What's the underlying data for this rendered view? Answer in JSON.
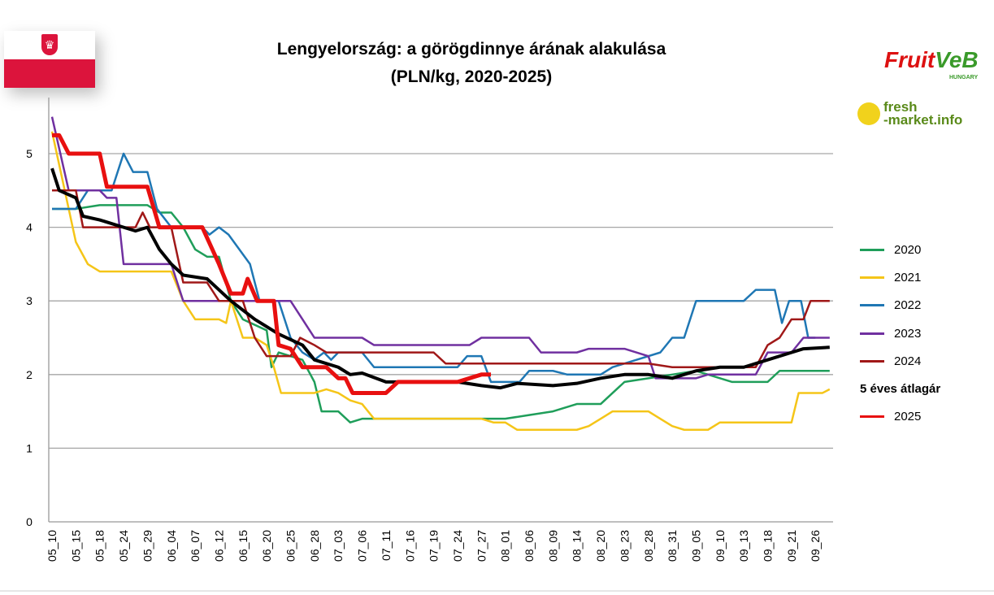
{
  "title_line1": "Lengyelország: a görögdinnye árának alakulása",
  "title_line2": "(PLN/kg, 2020-2025)",
  "logos": {
    "fruitveb": "FruitVeB",
    "fruitveb_sub": "HUNGARY",
    "freshmarket": "fresh-market.info"
  },
  "chart_data": {
    "type": "line",
    "title": "Lengyelország: a görögdinnye árának alakulása (PLN/kg, 2020-2025)",
    "xlabel": "",
    "ylabel": "",
    "ylim": [
      0,
      5.5
    ],
    "yticks": [
      0,
      1,
      2,
      3,
      4,
      5
    ],
    "grid": true,
    "legend_position": "right",
    "categories": [
      "05_10",
      "05_15",
      "05_18",
      "05_24",
      "05_29",
      "06_04",
      "06_07",
      "06_12",
      "06_15",
      "06_20",
      "06_25",
      "06_28",
      "07_03",
      "07_06",
      "07_11",
      "07_16",
      "07_19",
      "07_24",
      "07_27",
      "08_01",
      "08_06",
      "08_09",
      "08_14",
      "08_20",
      "08_23",
      "08_28",
      "08_31",
      "09_05",
      "09_10",
      "09_13",
      "09_18",
      "09_21",
      "09_26"
    ],
    "x_note": "points are [category index, PLN/kg]",
    "series": [
      {
        "name": "2020",
        "color": "#1f9e5a",
        "width": 2.5,
        "points": [
          [
            0,
            4.25
          ],
          [
            1,
            4.25
          ],
          [
            2,
            4.3
          ],
          [
            4,
            4.3
          ],
          [
            4.5,
            4.2
          ],
          [
            5,
            4.2
          ],
          [
            5.5,
            4.0
          ],
          [
            6,
            3.7
          ],
          [
            6.5,
            3.6
          ],
          [
            7,
            3.6
          ],
          [
            7.5,
            3.0
          ],
          [
            8,
            2.75
          ],
          [
            9,
            2.6
          ],
          [
            9.2,
            2.1
          ],
          [
            9.5,
            2.3
          ],
          [
            10.5,
            2.2
          ],
          [
            11,
            1.9
          ],
          [
            11.3,
            1.5
          ],
          [
            12,
            1.5
          ],
          [
            12.5,
            1.35
          ],
          [
            13,
            1.4
          ],
          [
            19,
            1.4
          ],
          [
            20,
            1.45
          ],
          [
            21,
            1.5
          ],
          [
            22,
            1.6
          ],
          [
            23,
            1.6
          ],
          [
            23.5,
            1.75
          ],
          [
            24,
            1.9
          ],
          [
            25,
            1.95
          ],
          [
            26,
            2.0
          ],
          [
            27,
            2.05
          ],
          [
            28,
            1.95
          ],
          [
            28.5,
            1.9
          ],
          [
            30,
            1.9
          ],
          [
            30.5,
            2.05
          ],
          [
            32.6,
            2.05
          ]
        ]
      },
      {
        "name": "2021",
        "color": "#f5c518",
        "width": 2.5,
        "points": [
          [
            0,
            5.3
          ],
          [
            1,
            3.8
          ],
          [
            1.5,
            3.5
          ],
          [
            2,
            3.4
          ],
          [
            5,
            3.4
          ],
          [
            5.5,
            3.0
          ],
          [
            6,
            2.75
          ],
          [
            7,
            2.75
          ],
          [
            7.3,
            2.7
          ],
          [
            7.5,
            3.0
          ],
          [
            8,
            2.5
          ],
          [
            8.5,
            2.5
          ],
          [
            9,
            2.4
          ],
          [
            9.3,
            2.1
          ],
          [
            9.6,
            1.75
          ],
          [
            11,
            1.75
          ],
          [
            11.5,
            1.8
          ],
          [
            12,
            1.75
          ],
          [
            12.5,
            1.65
          ],
          [
            13,
            1.6
          ],
          [
            13.5,
            1.4
          ],
          [
            18,
            1.4
          ],
          [
            18.5,
            1.35
          ],
          [
            19,
            1.35
          ],
          [
            19.5,
            1.25
          ],
          [
            22,
            1.25
          ],
          [
            22.5,
            1.3
          ],
          [
            23,
            1.4
          ],
          [
            23.5,
            1.5
          ],
          [
            25,
            1.5
          ],
          [
            25.5,
            1.4
          ],
          [
            26,
            1.3
          ],
          [
            26.5,
            1.25
          ],
          [
            27.5,
            1.25
          ],
          [
            28,
            1.35
          ],
          [
            31,
            1.35
          ],
          [
            31.3,
            1.75
          ],
          [
            32.3,
            1.75
          ],
          [
            32.6,
            1.8
          ]
        ]
      },
      {
        "name": "2022",
        "color": "#1f77b4",
        "width": 2.5,
        "points": [
          [
            0,
            4.25
          ],
          [
            1,
            4.25
          ],
          [
            1.5,
            4.5
          ],
          [
            2.5,
            4.5
          ],
          [
            3,
            5.0
          ],
          [
            3.4,
            4.75
          ],
          [
            4,
            4.75
          ],
          [
            4.4,
            4.25
          ],
          [
            5,
            4.0
          ],
          [
            6.3,
            4.0
          ],
          [
            6.6,
            3.9
          ],
          [
            7,
            4.0
          ],
          [
            7.4,
            3.9
          ],
          [
            8.3,
            3.5
          ],
          [
            8.7,
            3.0
          ],
          [
            9.5,
            3.0
          ],
          [
            10,
            2.5
          ],
          [
            10.5,
            2.3
          ],
          [
            11,
            2.2
          ],
          [
            11.4,
            2.3
          ],
          [
            11.7,
            2.2
          ],
          [
            12,
            2.3
          ],
          [
            13,
            2.3
          ],
          [
            13.5,
            2.1
          ],
          [
            17,
            2.1
          ],
          [
            17.4,
            2.25
          ],
          [
            18,
            2.25
          ],
          [
            18.4,
            1.9
          ],
          [
            19.6,
            1.9
          ],
          [
            20,
            2.05
          ],
          [
            21,
            2.05
          ],
          [
            21.6,
            2.0
          ],
          [
            23,
            2.0
          ],
          [
            23.5,
            2.1
          ],
          [
            24.5,
            2.2
          ],
          [
            25.5,
            2.3
          ],
          [
            26,
            2.5
          ],
          [
            26.5,
            2.5
          ],
          [
            27,
            3.0
          ],
          [
            29,
            3.0
          ],
          [
            29.5,
            3.15
          ],
          [
            30.3,
            3.15
          ],
          [
            30.6,
            2.7
          ],
          [
            30.9,
            3.0
          ],
          [
            31.4,
            3.0
          ],
          [
            31.7,
            2.5
          ],
          [
            32,
            2.5
          ]
        ]
      },
      {
        "name": "2023",
        "color": "#7030a0",
        "width": 2.5,
        "points": [
          [
            0,
            5.5
          ],
          [
            0.7,
            4.5
          ],
          [
            2,
            4.5
          ],
          [
            2.3,
            4.4
          ],
          [
            2.7,
            4.4
          ],
          [
            3,
            3.5
          ],
          [
            5,
            3.5
          ],
          [
            5.5,
            3.0
          ],
          [
            10,
            3.0
          ],
          [
            10.5,
            2.75
          ],
          [
            11,
            2.5
          ],
          [
            13,
            2.5
          ],
          [
            13.5,
            2.4
          ],
          [
            17.5,
            2.4
          ],
          [
            18,
            2.5
          ],
          [
            20,
            2.5
          ],
          [
            20.5,
            2.3
          ],
          [
            22,
            2.3
          ],
          [
            22.5,
            2.35
          ],
          [
            24,
            2.35
          ],
          [
            25,
            2.25
          ],
          [
            25.3,
            1.95
          ],
          [
            27,
            1.95
          ],
          [
            27.5,
            2.0
          ],
          [
            29.5,
            2.0
          ],
          [
            30,
            2.3
          ],
          [
            31,
            2.3
          ],
          [
            31.5,
            2.5
          ],
          [
            32.6,
            2.5
          ]
        ]
      },
      {
        "name": "2024",
        "color": "#a01818",
        "width": 2.5,
        "points": [
          [
            0,
            4.5
          ],
          [
            1,
            4.5
          ],
          [
            1.3,
            4.0
          ],
          [
            3.5,
            4.0
          ],
          [
            3.8,
            4.2
          ],
          [
            4.1,
            4.0
          ],
          [
            5,
            4.0
          ],
          [
            5.5,
            3.25
          ],
          [
            6.5,
            3.25
          ],
          [
            7,
            3.0
          ],
          [
            8,
            3.0
          ],
          [
            8.5,
            2.5
          ],
          [
            9,
            2.25
          ],
          [
            10,
            2.25
          ],
          [
            10.4,
            2.5
          ],
          [
            11,
            2.4
          ],
          [
            11.5,
            2.3
          ],
          [
            16,
            2.3
          ],
          [
            16.5,
            2.15
          ],
          [
            25,
            2.15
          ],
          [
            26,
            2.1
          ],
          [
            29.5,
            2.1
          ],
          [
            30,
            2.4
          ],
          [
            30.5,
            2.5
          ],
          [
            31,
            2.75
          ],
          [
            31.5,
            2.75
          ],
          [
            31.8,
            3.0
          ],
          [
            32.6,
            3.0
          ]
        ]
      },
      {
        "name": "5 éves átlagár",
        "color": "#000000",
        "width": 4,
        "bold_label": true,
        "points": [
          [
            0,
            4.8
          ],
          [
            0.3,
            4.5
          ],
          [
            1,
            4.4
          ],
          [
            1.3,
            4.15
          ],
          [
            2,
            4.1
          ],
          [
            3,
            4.0
          ],
          [
            3.5,
            3.95
          ],
          [
            4,
            4.0
          ],
          [
            4.5,
            3.7
          ],
          [
            5,
            3.5
          ],
          [
            5.5,
            3.35
          ],
          [
            6.5,
            3.3
          ],
          [
            7.5,
            3.0
          ],
          [
            8.5,
            2.75
          ],
          [
            9.5,
            2.55
          ],
          [
            10.5,
            2.4
          ],
          [
            11,
            2.2
          ],
          [
            12,
            2.1
          ],
          [
            12.5,
            2.0
          ],
          [
            13,
            2.02
          ],
          [
            14,
            1.9
          ],
          [
            17,
            1.9
          ],
          [
            18,
            1.85
          ],
          [
            18.8,
            1.82
          ],
          [
            19.5,
            1.88
          ],
          [
            21,
            1.85
          ],
          [
            22,
            1.88
          ],
          [
            23,
            1.95
          ],
          [
            24,
            2.0
          ],
          [
            25,
            2.0
          ],
          [
            26,
            1.95
          ],
          [
            27,
            2.05
          ],
          [
            28,
            2.1
          ],
          [
            29,
            2.1
          ],
          [
            30,
            2.2
          ],
          [
            31,
            2.3
          ],
          [
            31.5,
            2.35
          ],
          [
            32.6,
            2.37
          ]
        ]
      },
      {
        "name": "2025",
        "color": "#e81010",
        "width": 5,
        "points": [
          [
            0,
            5.25
          ],
          [
            0.3,
            5.25
          ],
          [
            0.7,
            5.0
          ],
          [
            2,
            5.0
          ],
          [
            2.3,
            4.55
          ],
          [
            4,
            4.55
          ],
          [
            4.5,
            4.0
          ],
          [
            6.3,
            4.0
          ],
          [
            7,
            3.5
          ],
          [
            7.5,
            3.1
          ],
          [
            8,
            3.1
          ],
          [
            8.2,
            3.3
          ],
          [
            8.6,
            3.0
          ],
          [
            9.3,
            3.0
          ],
          [
            9.5,
            2.4
          ],
          [
            10,
            2.35
          ],
          [
            10.5,
            2.1
          ],
          [
            11.5,
            2.1
          ],
          [
            12,
            1.95
          ],
          [
            12.3,
            1.95
          ],
          [
            12.6,
            1.75
          ],
          [
            14,
            1.75
          ],
          [
            14.5,
            1.9
          ],
          [
            17,
            1.9
          ],
          [
            18,
            2.0
          ],
          [
            18.4,
            2.0
          ]
        ]
      }
    ]
  }
}
